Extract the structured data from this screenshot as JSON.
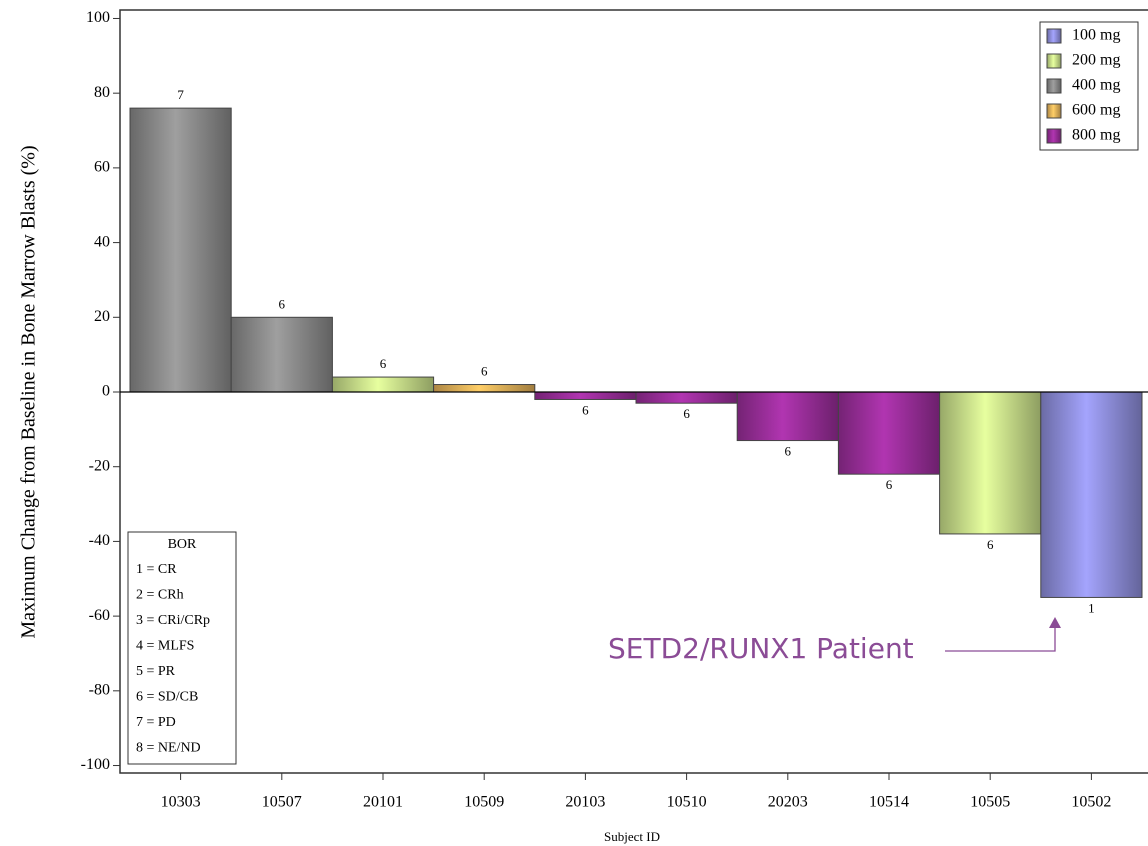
{
  "chart_data": {
    "type": "bar",
    "y_label": "Maximum Change from Baseline in Bone Marrow Blasts (%)",
    "x_label": "Subject ID",
    "categories": [
      "10303",
      "10507",
      "20101",
      "10509",
      "20103",
      "10510",
      "20203",
      "10514",
      "10505",
      "10502"
    ],
    "series": [
      {
        "name": "100 mg",
        "color": "#8f8fdc",
        "values": [
          null,
          null,
          null,
          null,
          null,
          null,
          null,
          null,
          null,
          -55
        ]
      },
      {
        "name": "200 mg",
        "color": "#c9e08a",
        "values": [
          null,
          null,
          4,
          null,
          null,
          null,
          null,
          null,
          -38,
          null
        ]
      },
      {
        "name": "400 mg",
        "color": "#8a8a8a",
        "values": [
          76,
          20,
          null,
          null,
          null,
          null,
          null,
          null,
          null,
          null
        ]
      },
      {
        "name": "600 mg",
        "color": "#e6b35a",
        "values": [
          null,
          null,
          null,
          2,
          null,
          null,
          null,
          null,
          null,
          null
        ]
      },
      {
        "name": "800 mg",
        "color": "#9a2e9a",
        "values": [
          null,
          null,
          null,
          null,
          -2,
          -3,
          -13,
          -22,
          null,
          null
        ]
      }
    ],
    "bar_labels": [
      7,
      6,
      6,
      6,
      6,
      6,
      6,
      6,
      6,
      1
    ],
    "ylim": [
      -102,
      102
    ],
    "yticks": [
      100,
      80,
      60,
      40,
      20,
      0,
      -20,
      -40,
      -60,
      -80,
      -100
    ],
    "legend": "upper right",
    "bor_legend": {
      "title": "BOR",
      "items": [
        "1 = CR",
        "2 = CRh",
        "3 = CRi/CRp",
        "4 = MLFS",
        "5 = PR",
        "6 = SD/CB",
        "7 = PD",
        "8 = NE/ND"
      ]
    },
    "annotation": "SETD2/RUNX1 Patient"
  }
}
